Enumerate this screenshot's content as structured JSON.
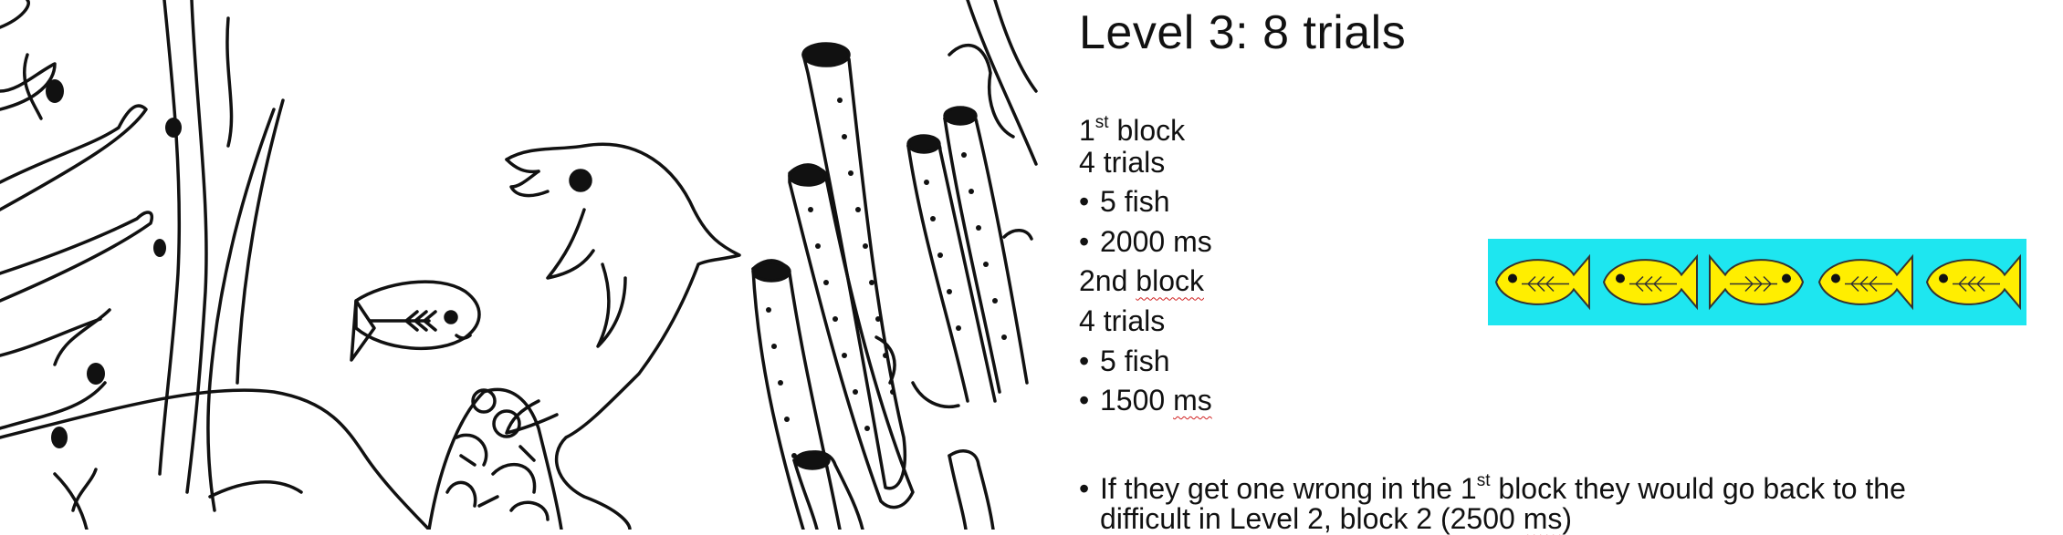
{
  "slide": {
    "title": "Level 3: 8 trials",
    "block1": {
      "heading_ord": "1",
      "heading_sup": "st",
      "heading_rest": " block",
      "trials": "4 trials",
      "fish": "5 fish",
      "duration": "2000 ms"
    },
    "block2": {
      "heading_ord": "2nd",
      "heading_rest": "block",
      "trials": "4 trials",
      "fish": "5 fish",
      "duration_num": "1500",
      "duration_unit": "ms"
    },
    "bullet_glyph": "•",
    "note": {
      "part1": "If they get one wrong in the 1",
      "sup": "st",
      "part2": " block they would go back to the",
      "line2_a": "difficult in Level 2, block 2 (2500 ",
      "line2_unit": "ms",
      "line2_b": ")"
    }
  },
  "stimulus": {
    "fish_directions": [
      "left",
      "left",
      "right",
      "left",
      "left"
    ],
    "colors": {
      "background": "#1ee6f0",
      "fish_fill": "#ffee00",
      "outline": "#333333"
    }
  },
  "illustration": {
    "subject": "underwater coloring scene",
    "icons": [
      "dolphin-icon",
      "fish-icon",
      "coral-icon",
      "seaweed-icon",
      "shell-pile-icon"
    ]
  }
}
